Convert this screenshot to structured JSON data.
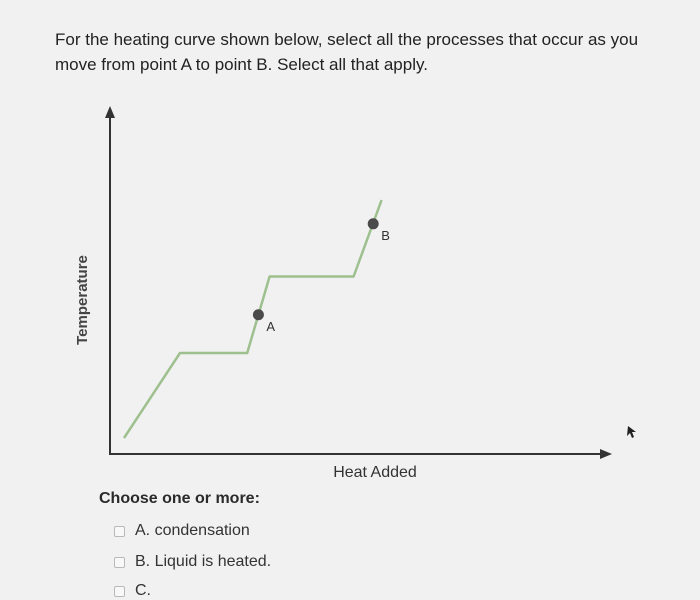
{
  "question": {
    "text": "For the heating curve shown below, select all the processes that occur as you move from point A to point B. Select all that apply."
  },
  "chart_data": {
    "type": "line",
    "xlabel": "Heat Added",
    "ylabel": "Temperature",
    "series": [
      {
        "points": [
          [
            0,
            0
          ],
          [
            1,
            1
          ],
          [
            2.2,
            1
          ],
          [
            2.6,
            1.9
          ],
          [
            4.1,
            1.9
          ],
          [
            4.6,
            2.8
          ]
        ],
        "color": "#9ec08e"
      }
    ],
    "points_labeled": [
      {
        "label": "A",
        "x": 2.4,
        "y": 1.45
      },
      {
        "label": "B",
        "x": 4.45,
        "y": 2.52
      }
    ],
    "grid": false
  },
  "answers": {
    "prompt": "Choose one or more:",
    "options": [
      {
        "letter": "A.",
        "text": "condensation",
        "checked": false
      },
      {
        "letter": "B.",
        "text": "Liquid is heated.",
        "checked": false
      },
      {
        "letter": "C.",
        "text": "",
        "checked": false
      }
    ]
  },
  "colors": {
    "curve": "#9ec08e",
    "axis": "#333333",
    "point": "#4a4a4a",
    "background": "#f1f1f1"
  }
}
